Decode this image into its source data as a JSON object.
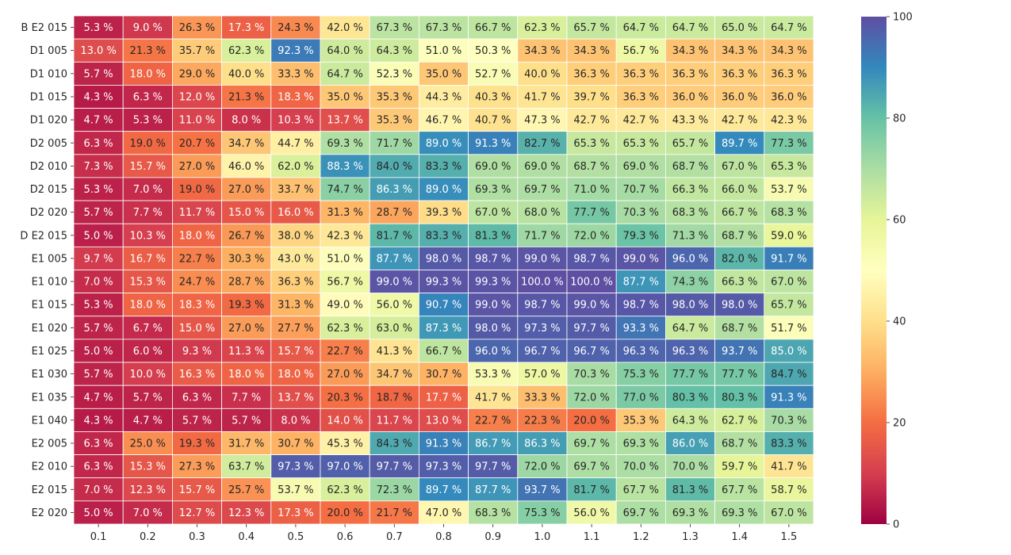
{
  "chart_data": {
    "type": "heatmap",
    "title": "",
    "xlabel": "",
    "ylabel": "",
    "value_suffix": " %",
    "colormap": "Spectral",
    "colorbar": {
      "min": 0,
      "max": 100,
      "ticks": [
        0,
        20,
        40,
        60,
        80,
        100
      ]
    },
    "columns": [
      "0.1",
      "0.2",
      "0.3",
      "0.4",
      "0.5",
      "0.6",
      "0.7",
      "0.8",
      "0.9",
      "1.0",
      "1.1",
      "1.2",
      "1.3",
      "1.4",
      "1.5"
    ],
    "rows": [
      "B E2 015",
      "D1 005",
      "D1 010",
      "D1 015",
      "D1 020",
      "D2 005",
      "D2 010",
      "D2 015",
      "D2 020",
      "D E2 015",
      "E1 005",
      "E1 010",
      "E1 015",
      "E1 020",
      "E1 025",
      "E1 030",
      "E1 035",
      "E1 040",
      "E2 005",
      "E2 010",
      "E2 015",
      "E2 020"
    ],
    "values": [
      [
        5.3,
        9.0,
        26.3,
        17.3,
        24.3,
        42.0,
        67.3,
        67.3,
        66.7,
        62.3,
        65.7,
        64.7,
        64.7,
        65.0,
        64.7
      ],
      [
        13.0,
        21.3,
        35.7,
        62.3,
        92.3,
        64.0,
        64.3,
        51.0,
        50.3,
        34.3,
        34.3,
        56.7,
        34.3,
        34.3,
        34.3
      ],
      [
        5.7,
        18.0,
        29.0,
        40.0,
        33.3,
        64.7,
        52.3,
        35.0,
        52.7,
        40.0,
        36.3,
        36.3,
        36.3,
        36.3,
        36.3
      ],
      [
        4.3,
        6.3,
        12.0,
        21.3,
        18.3,
        35.0,
        35.3,
        44.3,
        40.3,
        41.7,
        39.7,
        36.3,
        36.0,
        36.0,
        36.0
      ],
      [
        4.7,
        5.3,
        11.0,
        8.0,
        10.3,
        13.7,
        35.3,
        46.7,
        40.7,
        47.3,
        42.7,
        42.7,
        43.3,
        42.7,
        42.3
      ],
      [
        6.3,
        19.0,
        20.7,
        34.7,
        44.7,
        69.3,
        71.7,
        89.0,
        91.3,
        82.7,
        65.3,
        65.3,
        65.7,
        89.7,
        77.3
      ],
      [
        7.3,
        15.7,
        27.0,
        46.0,
        62.0,
        88.3,
        84.0,
        83.3,
        69.0,
        69.0,
        68.7,
        69.0,
        68.7,
        67.0,
        65.3
      ],
      [
        5.3,
        7.0,
        19.0,
        27.0,
        33.7,
        74.7,
        86.3,
        89.0,
        69.3,
        69.7,
        71.0,
        70.7,
        66.3,
        66.0,
        53.7
      ],
      [
        5.7,
        7.7,
        11.7,
        15.0,
        16.0,
        31.3,
        28.7,
        39.3,
        67.0,
        68.0,
        77.7,
        70.3,
        68.3,
        66.7,
        68.3
      ],
      [
        5.0,
        10.3,
        18.0,
        26.7,
        38.0,
        42.3,
        81.7,
        83.3,
        81.3,
        71.7,
        72.0,
        79.3,
        71.3,
        68.7,
        59.0
      ],
      [
        9.7,
        16.7,
        22.7,
        30.3,
        43.0,
        51.0,
        87.7,
        98.0,
        98.7,
        99.0,
        98.7,
        99.0,
        96.0,
        82.0,
        91.7
      ],
      [
        7.0,
        15.3,
        24.7,
        28.7,
        36.3,
        56.7,
        99.0,
        99.3,
        99.3,
        100.0,
        100.0,
        87.7,
        74.3,
        66.3,
        67.0
      ],
      [
        5.3,
        18.0,
        18.3,
        19.3,
        31.3,
        49.0,
        56.0,
        90.7,
        99.0,
        98.7,
        99.0,
        98.7,
        98.0,
        98.0,
        65.7
      ],
      [
        5.7,
        6.7,
        15.0,
        27.0,
        27.7,
        62.3,
        63.0,
        87.3,
        98.0,
        97.3,
        97.7,
        93.3,
        64.7,
        68.7,
        51.7
      ],
      [
        5.0,
        6.0,
        9.3,
        11.3,
        15.7,
        22.7,
        41.3,
        66.7,
        96.0,
        96.7,
        96.7,
        96.3,
        96.3,
        93.7,
        85.0
      ],
      [
        5.7,
        10.0,
        16.3,
        18.0,
        18.0,
        27.0,
        34.7,
        30.7,
        53.3,
        57.0,
        70.3,
        75.3,
        77.7,
        77.7,
        84.7
      ],
      [
        4.7,
        5.7,
        6.3,
        7.7,
        13.7,
        20.3,
        18.7,
        17.7,
        41.7,
        33.3,
        72.0,
        77.0,
        80.3,
        80.3,
        91.3
      ],
      [
        4.3,
        4.7,
        5.7,
        5.7,
        8.0,
        14.0,
        11.7,
        13.0,
        22.7,
        22.3,
        20.0,
        35.3,
        64.3,
        62.7,
        70.3
      ],
      [
        6.3,
        25.0,
        19.3,
        31.7,
        30.7,
        45.3,
        84.3,
        91.3,
        86.7,
        86.3,
        69.7,
        69.3,
        86.0,
        68.7,
        83.3
      ],
      [
        6.3,
        15.3,
        27.3,
        63.7,
        97.3,
        97.0,
        97.7,
        97.3,
        97.7,
        72.0,
        69.7,
        70.0,
        70.0,
        59.7,
        41.7
      ],
      [
        7.0,
        12.3,
        15.7,
        25.7,
        53.7,
        62.3,
        72.3,
        89.7,
        87.7,
        93.7,
        81.7,
        67.7,
        81.3,
        67.7,
        58.7
      ],
      [
        5.0,
        7.0,
        12.7,
        12.3,
        17.3,
        20.0,
        21.7,
        47.0,
        68.3,
        75.3,
        56.0,
        69.7,
        69.3,
        69.3,
        67.0
      ]
    ]
  }
}
